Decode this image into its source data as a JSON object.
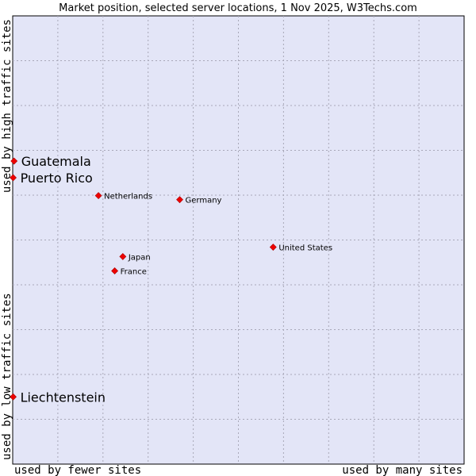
{
  "chart_data": {
    "type": "scatter",
    "title": "Market position, selected server locations, 1 Nov 2025, W3Techs.com",
    "xlabel_left": "used by fewer sites",
    "xlabel_right": "used by many sites",
    "ylabel_bottom": "used by low traffic sites",
    "ylabel_top": "used by high traffic sites",
    "xlim": [
      0,
      100
    ],
    "ylim": [
      0,
      100
    ],
    "grid": true,
    "plot_background": "#e3e5f7",
    "point_color": "#ee0000",
    "points": [
      {
        "label": "Guatemala",
        "x": 0.3,
        "y": 67.6,
        "emphasis": true
      },
      {
        "label": "Puerto Rico",
        "x": 0.1,
        "y": 63.9,
        "emphasis": true
      },
      {
        "label": "Liechtenstein",
        "x": 0.1,
        "y": 15.0,
        "emphasis": true
      },
      {
        "label": "Netherlands",
        "x": 19.0,
        "y": 59.9,
        "emphasis": false
      },
      {
        "label": "Germany",
        "x": 37.0,
        "y": 59.0,
        "emphasis": false
      },
      {
        "label": "United States",
        "x": 57.7,
        "y": 48.4,
        "emphasis": false
      },
      {
        "label": "Japan",
        "x": 24.4,
        "y": 46.3,
        "emphasis": false
      },
      {
        "label": "France",
        "x": 22.6,
        "y": 43.1,
        "emphasis": false
      }
    ]
  }
}
